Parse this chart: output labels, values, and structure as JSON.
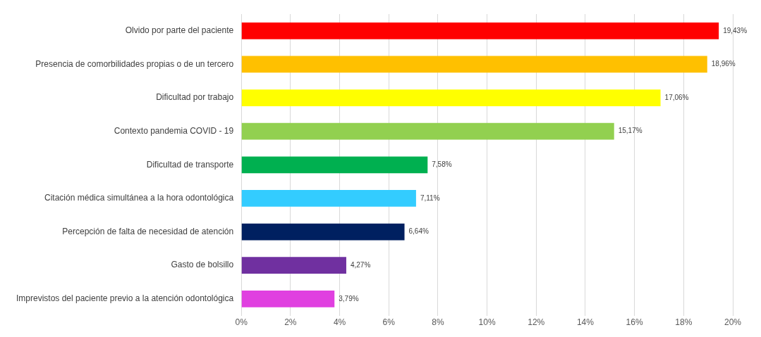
{
  "chart_data": {
    "type": "bar",
    "orientation": "horizontal",
    "categories": [
      "Olvido por parte del paciente",
      "Presencia de comorbilidades propias o de un tercero",
      "Dificultad por trabajo",
      "Contexto pandemia COVID - 19",
      "Dificultad de transporte",
      "Citación médica simultánea a la hora odontológica",
      "Percepción de falta de necesidad de atención",
      "Gasto de bolsillo",
      "Imprevistos del paciente previo a la atención odontológica"
    ],
    "values": [
      19.43,
      18.96,
      17.06,
      15.17,
      7.58,
      7.11,
      6.64,
      4.27,
      3.79
    ],
    "colors": [
      "#ff0000",
      "#ffc000",
      "#ffff00",
      "#92d050",
      "#00b050",
      "#33ccff",
      "#002060",
      "#7030a0",
      "#e040e0"
    ],
    "value_labels": [
      "19,43%",
      "18,96%",
      "17,06%",
      "15,17%",
      "7,58%",
      "7,11%",
      "6,64%",
      "4,27%",
      "3,79%"
    ],
    "xlim": [
      0,
      20
    ],
    "xticks": [
      {
        "value": 0,
        "label": "0%"
      },
      {
        "value": 2,
        "label": "2%"
      },
      {
        "value": 4,
        "label": "4%"
      },
      {
        "value": 6,
        "label": "6%"
      },
      {
        "value": 8,
        "label": "8%"
      },
      {
        "value": 10,
        "label": "10%"
      },
      {
        "value": 12,
        "label": "12%"
      },
      {
        "value": 14,
        "label": "14%"
      },
      {
        "value": 16,
        "label": "16%"
      },
      {
        "value": 18,
        "label": "18%"
      },
      {
        "value": 20,
        "label": "20%"
      }
    ],
    "grid": "x",
    "legend": false
  }
}
